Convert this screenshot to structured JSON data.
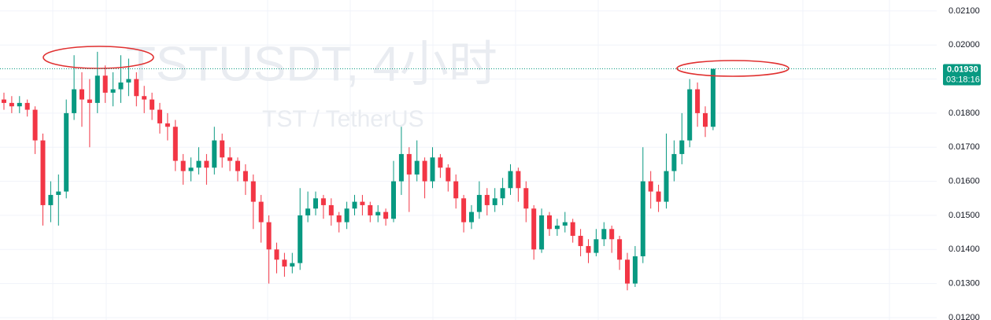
{
  "chart_data": {
    "type": "candlestick",
    "title": "TSTUSDT, 4小时",
    "subtitle": "TST / TetherUS",
    "up_color": "#089981",
    "down_color": "#f23645",
    "open": [
      0.0184,
      0.0183,
      0.0182,
      0.0183,
      0.0181,
      0.0172,
      0.0153,
      0.0156,
      0.0157,
      0.018,
      0.0187,
      0.0184,
      0.0183,
      0.0191,
      0.0186,
      0.0187,
      0.0189,
      0.019,
      0.0185,
      0.0184,
      0.0181,
      0.0177,
      0.0176,
      0.0166,
      0.0163,
      0.0164,
      0.0166,
      0.0164,
      0.0172,
      0.0167,
      0.0166,
      0.0163,
      0.016,
      0.0154,
      0.0148,
      0.014,
      0.0137,
      0.0135,
      0.0136,
      0.015,
      0.0152,
      0.0155,
      0.0153,
      0.015,
      0.0148,
      0.0152,
      0.0154,
      0.0153,
      0.015,
      0.0151,
      0.0149,
      0.016,
      0.0168,
      0.0162,
      0.0166,
      0.016,
      0.0167,
      0.0164,
      0.016,
      0.0155,
      0.0148,
      0.0151,
      0.0156,
      0.0153,
      0.0155,
      0.0158,
      0.0163,
      0.0158,
      0.0152,
      0.014,
      0.015,
      0.0146,
      0.0147,
      0.0148,
      0.0144,
      0.0141,
      0.0139,
      0.0143,
      0.0146,
      0.0143,
      0.0137,
      0.013,
      0.0138,
      0.016,
      0.0157,
      0.0154,
      0.0163,
      0.0168,
      0.0172,
      0.0187,
      0.018,
      0.0176
    ],
    "high": [
      0.0186,
      0.0185,
      0.0185,
      0.0184,
      0.0182,
      0.0174,
      0.016,
      0.0162,
      0.0184,
      0.0197,
      0.0192,
      0.019,
      0.0198,
      0.0194,
      0.0192,
      0.0197,
      0.0196,
      0.0192,
      0.0188,
      0.0186,
      0.0183,
      0.018,
      0.0178,
      0.0168,
      0.0167,
      0.017,
      0.0168,
      0.0176,
      0.0174,
      0.017,
      0.0167,
      0.0165,
      0.0162,
      0.0156,
      0.015,
      0.0142,
      0.0139,
      0.0139,
      0.0158,
      0.0157,
      0.0157,
      0.0156,
      0.0155,
      0.0151,
      0.0154,
      0.0156,
      0.0156,
      0.0154,
      0.0153,
      0.0152,
      0.0166,
      0.0176,
      0.017,
      0.0172,
      0.0167,
      0.017,
      0.0168,
      0.0165,
      0.0162,
      0.0156,
      0.0153,
      0.016,
      0.0158,
      0.0158,
      0.0161,
      0.0165,
      0.0164,
      0.016,
      0.0153,
      0.0152,
      0.0151,
      0.0149,
      0.0151,
      0.0149,
      0.0146,
      0.0143,
      0.0146,
      0.0148,
      0.0147,
      0.0144,
      0.0139,
      0.0141,
      0.017,
      0.0163,
      0.0159,
      0.0174,
      0.0172,
      0.018,
      0.019,
      0.0189,
      0.0182,
      0.0193
    ],
    "low": [
      0.0181,
      0.018,
      0.018,
      0.0179,
      0.0168,
      0.0147,
      0.0148,
      0.0147,
      0.0155,
      0.0178,
      0.0176,
      0.017,
      0.018,
      0.0183,
      0.0182,
      0.0183,
      0.0185,
      0.0182,
      0.018,
      0.0178,
      0.0174,
      0.0172,
      0.0163,
      0.0159,
      0.016,
      0.0162,
      0.0159,
      0.0162,
      0.0164,
      0.0163,
      0.016,
      0.0156,
      0.0146,
      0.0142,
      0.013,
      0.0133,
      0.0132,
      0.0133,
      0.0134,
      0.0148,
      0.015,
      0.0149,
      0.0147,
      0.0145,
      0.0146,
      0.015,
      0.015,
      0.0148,
      0.0148,
      0.0147,
      0.0148,
      0.0156,
      0.0151,
      0.016,
      0.0155,
      0.0158,
      0.0161,
      0.0157,
      0.0152,
      0.0145,
      0.0146,
      0.0149,
      0.015,
      0.0151,
      0.0153,
      0.0156,
      0.0154,
      0.0148,
      0.0137,
      0.0139,
      0.0144,
      0.0144,
      0.0145,
      0.0142,
      0.0138,
      0.0136,
      0.0138,
      0.0141,
      0.0139,
      0.0134,
      0.0128,
      0.0129,
      0.0136,
      0.0152,
      0.0151,
      0.0152,
      0.016,
      0.0165,
      0.017,
      0.0176,
      0.0173,
      0.0175
    ],
    "close": [
      0.0183,
      0.0182,
      0.0183,
      0.0181,
      0.0172,
      0.0153,
      0.0156,
      0.0157,
      0.018,
      0.0187,
      0.0184,
      0.0183,
      0.0191,
      0.0186,
      0.0187,
      0.0189,
      0.019,
      0.0185,
      0.0184,
      0.0181,
      0.0177,
      0.0176,
      0.0166,
      0.0163,
      0.0164,
      0.0166,
      0.0164,
      0.0172,
      0.0167,
      0.0166,
      0.0163,
      0.016,
      0.0154,
      0.0148,
      0.014,
      0.0137,
      0.0135,
      0.0136,
      0.015,
      0.0152,
      0.0155,
      0.0153,
      0.015,
      0.0148,
      0.0152,
      0.0154,
      0.0153,
      0.015,
      0.0151,
      0.0149,
      0.016,
      0.0168,
      0.0162,
      0.0166,
      0.016,
      0.0167,
      0.0164,
      0.016,
      0.0155,
      0.0148,
      0.0151,
      0.0156,
      0.0153,
      0.0155,
      0.0158,
      0.0163,
      0.0158,
      0.0152,
      0.014,
      0.015,
      0.0146,
      0.0147,
      0.0148,
      0.0144,
      0.0141,
      0.0139,
      0.0143,
      0.0146,
      0.0143,
      0.0137,
      0.013,
      0.0138,
      0.016,
      0.0157,
      0.0154,
      0.0163,
      0.0168,
      0.0172,
      0.0187,
      0.018,
      0.0176,
      0.0193
    ],
    "ylim": [
      0.01193,
      0.02132
    ],
    "yticks": [
      {
        "value": 0.012,
        "label": "0.01200"
      },
      {
        "value": 0.013,
        "label": "0.01300"
      },
      {
        "value": 0.014,
        "label": "0.01400"
      },
      {
        "value": 0.015,
        "label": "0.01500"
      },
      {
        "value": 0.016,
        "label": "0.01600"
      },
      {
        "value": 0.017,
        "label": "0.01700"
      },
      {
        "value": 0.018,
        "label": "0.01800"
      },
      {
        "value": 0.019,
        "label": "0.01900"
      },
      {
        "value": 0.02,
        "label": "0.02000"
      },
      {
        "value": 0.021,
        "label": "0.02100"
      }
    ],
    "grid": true,
    "last_price": {
      "value": 0.0193,
      "label": "0.01930"
    },
    "countdown": "03:18:16"
  }
}
